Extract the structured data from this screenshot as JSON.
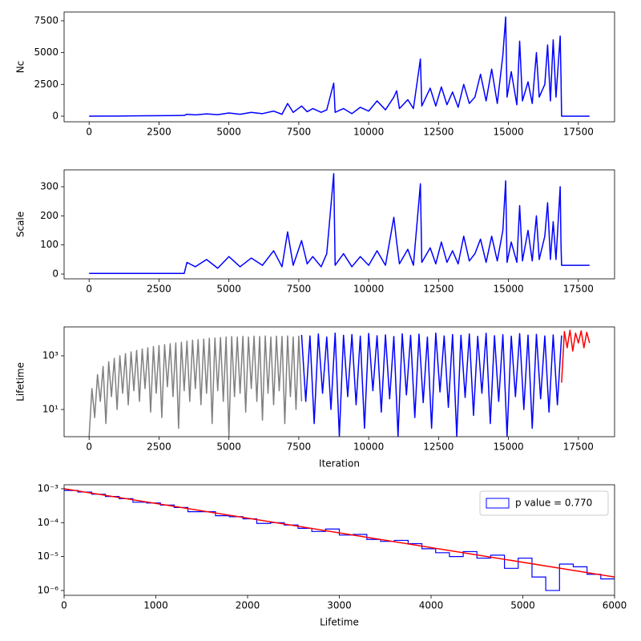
{
  "chart_data": [
    {
      "type": "line",
      "ylabel": "Nc",
      "xlim": [
        -895,
        18795
      ],
      "xticks": [
        0,
        2500,
        5000,
        7500,
        10000,
        12500,
        15000,
        17500
      ],
      "ylim": [
        -441,
        8190
      ],
      "yticks": [
        0,
        2500,
        5000,
        7500
      ],
      "x": [
        0,
        500,
        1000,
        1500,
        2000,
        2500,
        3000,
        3400,
        3500,
        3800,
        4200,
        4600,
        5000,
        5400,
        5800,
        6200,
        6600,
        6900,
        7100,
        7300,
        7600,
        7800,
        8000,
        8300,
        8500,
        8750,
        8800,
        9100,
        9400,
        9700,
        10000,
        10300,
        10600,
        10900,
        11000,
        11100,
        11400,
        11600,
        11850,
        11900,
        12200,
        12400,
        12600,
        12800,
        13000,
        13200,
        13400,
        13600,
        13800,
        14000,
        14200,
        14400,
        14600,
        14800,
        14900,
        14950,
        15100,
        15300,
        15400,
        15500,
        15700,
        15850,
        16000,
        16100,
        16300,
        16400,
        16500,
        16600,
        16700,
        16850,
        16880,
        16900,
        17900
      ],
      "series": [
        {
          "color": "blue",
          "values": [
            0,
            10,
            10,
            20,
            30,
            40,
            50,
            60,
            150,
            100,
            180,
            120,
            250,
            150,
            300,
            200,
            400,
            150,
            1000,
            300,
            800,
            350,
            600,
            300,
            500,
            2600,
            300,
            600,
            200,
            700,
            400,
            1200,
            500,
            1500,
            2000,
            600,
            1300,
            600,
            4500,
            800,
            2200,
            800,
            2300,
            900,
            1900,
            700,
            2500,
            1000,
            1500,
            3300,
            1200,
            3700,
            1000,
            4800,
            7800,
            1500,
            3500,
            900,
            5900,
            1200,
            2700,
            1000,
            5000,
            1500,
            2500,
            5600,
            1200,
            6000,
            1500,
            6300,
            3000,
            0,
            0
          ]
        }
      ]
    },
    {
      "type": "line",
      "ylabel": "Scale",
      "xlim": [
        -895,
        18795
      ],
      "xticks": [
        0,
        2500,
        5000,
        7500,
        10000,
        12500,
        15000,
        17500
      ],
      "ylim": [
        -16.5,
        358
      ],
      "yticks": [
        0,
        100,
        200,
        300
      ],
      "x": [
        0,
        500,
        1000,
        1500,
        2000,
        2500,
        3000,
        3400,
        3500,
        3800,
        4200,
        4600,
        5000,
        5400,
        5800,
        6200,
        6600,
        6900,
        7100,
        7300,
        7600,
        7800,
        8000,
        8300,
        8500,
        8750,
        8800,
        9100,
        9400,
        9700,
        10000,
        10300,
        10600,
        10900,
        11000,
        11100,
        11400,
        11600,
        11850,
        11900,
        12200,
        12400,
        12600,
        12800,
        13000,
        13200,
        13400,
        13600,
        13800,
        14000,
        14200,
        14400,
        14600,
        14800,
        14900,
        14950,
        15100,
        15300,
        15400,
        15500,
        15700,
        15850,
        16000,
        16100,
        16300,
        16400,
        16500,
        16600,
        16700,
        16850,
        16880,
        16900,
        17900
      ],
      "series": [
        {
          "color": "blue",
          "values": [
            2,
            2,
            2,
            2,
            2,
            2,
            2,
            2,
            40,
            25,
            50,
            20,
            60,
            25,
            55,
            30,
            80,
            25,
            145,
            30,
            115,
            35,
            60,
            25,
            70,
            345,
            30,
            70,
            25,
            60,
            30,
            80,
            30,
            195,
            110,
            35,
            85,
            30,
            310,
            40,
            90,
            35,
            110,
            40,
            80,
            35,
            130,
            45,
            70,
            120,
            40,
            130,
            45,
            150,
            320,
            40,
            110,
            40,
            235,
            45,
            150,
            45,
            200,
            50,
            130,
            245,
            50,
            180,
            50,
            300,
            100,
            30,
            30
          ]
        }
      ]
    },
    {
      "type": "line",
      "ylabel": "Lifetime",
      "xlabel": "Iteration",
      "yscale": "log",
      "xlim": [
        -895,
        18795
      ],
      "xticks": [
        0,
        2500,
        5000,
        7500,
        10000,
        12500,
        15000,
        17500
      ],
      "ylim": [
        0.97,
        11900
      ],
      "yticks": [
        {
          "value": 10,
          "label": "10¹"
        },
        {
          "value": 1000,
          "label": "10³"
        }
      ],
      "series": [
        {
          "color": "gray",
          "x": [
            0,
            100,
            200,
            300,
            400,
            500,
            600,
            700,
            800,
            900,
            1000,
            1100,
            1200,
            1300,
            1400,
            1500,
            1600,
            1700,
            1800,
            1900,
            2000,
            2100,
            2200,
            2300,
            2400,
            2500,
            2600,
            2700,
            2800,
            2900,
            3000,
            3100,
            3200,
            3300,
            3400,
            3500,
            3600,
            3700,
            3800,
            3900,
            4000,
            4100,
            4200,
            4300,
            4400,
            4500,
            4600,
            4700,
            4800,
            4900,
            5000,
            5100,
            5200,
            5300,
            5400,
            5500,
            5600,
            5700,
            5800,
            5900,
            6000,
            6100,
            6200,
            6300,
            6400,
            6500,
            6600,
            6700,
            6800,
            6900,
            7000,
            7100,
            7200,
            7300,
            7400,
            7500,
            7600
          ],
          "values": [
            1,
            60,
            5,
            200,
            20,
            400,
            3,
            600,
            30,
            800,
            10,
            1000,
            40,
            1200,
            15,
            1400,
            50,
            1600,
            20,
            1800,
            60,
            2000,
            8,
            2200,
            40,
            2400,
            5,
            2600,
            70,
            2800,
            30,
            3000,
            2,
            3200,
            50,
            3500,
            20,
            3800,
            60,
            4000,
            15,
            4200,
            40,
            4500,
            3,
            4600,
            50,
            4800,
            20,
            5000,
            1,
            5200,
            30,
            5000,
            40,
            5300,
            8,
            5000,
            60,
            5400,
            20,
            5200,
            4,
            5500,
            40,
            5000,
            15,
            5400,
            50,
            5200,
            3,
            5500,
            30,
            5000,
            10,
            5400,
            20
          ]
        },
        {
          "color": "blue",
          "x": [
            7600,
            7750,
            7900,
            8050,
            8200,
            8350,
            8500,
            8650,
            8800,
            8950,
            9100,
            9250,
            9400,
            9550,
            9700,
            9850,
            10000,
            10150,
            10300,
            10450,
            10600,
            10750,
            10900,
            11050,
            11200,
            11350,
            11500,
            11650,
            11800,
            11950,
            12100,
            12250,
            12400,
            12550,
            12700,
            12850,
            13000,
            13150,
            13300,
            13450,
            13600,
            13750,
            13900,
            14050,
            14200,
            14350,
            14500,
            14650,
            14800,
            14950,
            15100,
            15250,
            15400,
            15550,
            15700,
            15850,
            16000,
            16150,
            16300,
            16450,
            16600,
            16750,
            16900
          ],
          "values": [
            6000,
            20,
            5500,
            3,
            6500,
            40,
            5000,
            10,
            7000,
            1,
            5800,
            30,
            6200,
            15,
            5400,
            2,
            6800,
            50,
            5600,
            8,
            6000,
            25,
            5200,
            1,
            6600,
            35,
            5800,
            5,
            6400,
            18,
            5000,
            2,
            7000,
            45,
            5500,
            12,
            6200,
            1,
            5800,
            28,
            6500,
            6,
            5300,
            40,
            6900,
            3,
            5600,
            20,
            6100,
            1,
            5400,
            30,
            6700,
            10,
            5900,
            2,
            6300,
            25,
            5500,
            8,
            6000,
            15,
            5700
          ]
        },
        {
          "color": "red",
          "x": [
            16900,
            17000,
            17100,
            17200,
            17300,
            17400,
            17500,
            17600,
            17700,
            17800,
            17900
          ],
          "values": [
            100,
            8000,
            2000,
            9000,
            1500,
            7000,
            3000,
            8500,
            2000,
            7500,
            3000
          ]
        }
      ]
    },
    {
      "type": "histogram",
      "xlabel": "Lifetime",
      "yscale": "log",
      "legend": "upper right",
      "xlim": [
        0,
        6000
      ],
      "xticks": [
        0,
        1000,
        2000,
        3000,
        4000,
        5000,
        6000
      ],
      "ylim": [
        7.2e-07,
        0.00131
      ],
      "yticks": [
        {
          "value": 1e-06,
          "label": "10⁻⁶"
        },
        {
          "value": 1e-05,
          "label": "10⁻⁵"
        },
        {
          "value": 0.0001,
          "label": "10⁻⁴"
        },
        {
          "value": 0.001,
          "label": "10⁻³"
        }
      ],
      "bins": [
        0,
        150,
        300,
        450,
        600,
        750,
        900,
        1050,
        1200,
        1350,
        1500,
        1650,
        1800,
        1950,
        2100,
        2250,
        2400,
        2550,
        2700,
        2850,
        3000,
        3150,
        3300,
        3450,
        3600,
        3750,
        3900,
        4050,
        4200,
        4350,
        4500,
        4650,
        4800,
        4950,
        5100,
        5250,
        5400,
        5550,
        5700,
        5850,
        6000
      ],
      "series": [
        {
          "name": "p value = 0.770",
          "color": "blue",
          "values": [
            0.00089,
            0.0008,
            0.00069,
            0.00059,
            0.00051,
            0.0004,
            0.00038,
            0.00033,
            0.00028,
            0.00021,
            0.00021,
            0.00016,
            0.00015,
            0.00013,
            9.5e-05,
            0.0001,
            8.5e-05,
            6.8e-05,
            5.5e-05,
            6.5e-05,
            4.3e-05,
            4.5e-05,
            3.2e-05,
            2.8e-05,
            3e-05,
            2.4e-05,
            1.7e-05,
            1.3e-05,
            1e-05,
            1.4e-05,
            9e-06,
            1.1e-05,
            4.5e-06,
            9e-06,
            2.5e-06,
            1e-06,
            6e-06,
            5e-06,
            3e-06,
            2.2e-06
          ]
        }
      ],
      "fit": {
        "color": "red",
        "x": [
          0,
          6000
        ],
        "values": [
          0.001,
          2.5e-06
        ]
      }
    }
  ]
}
